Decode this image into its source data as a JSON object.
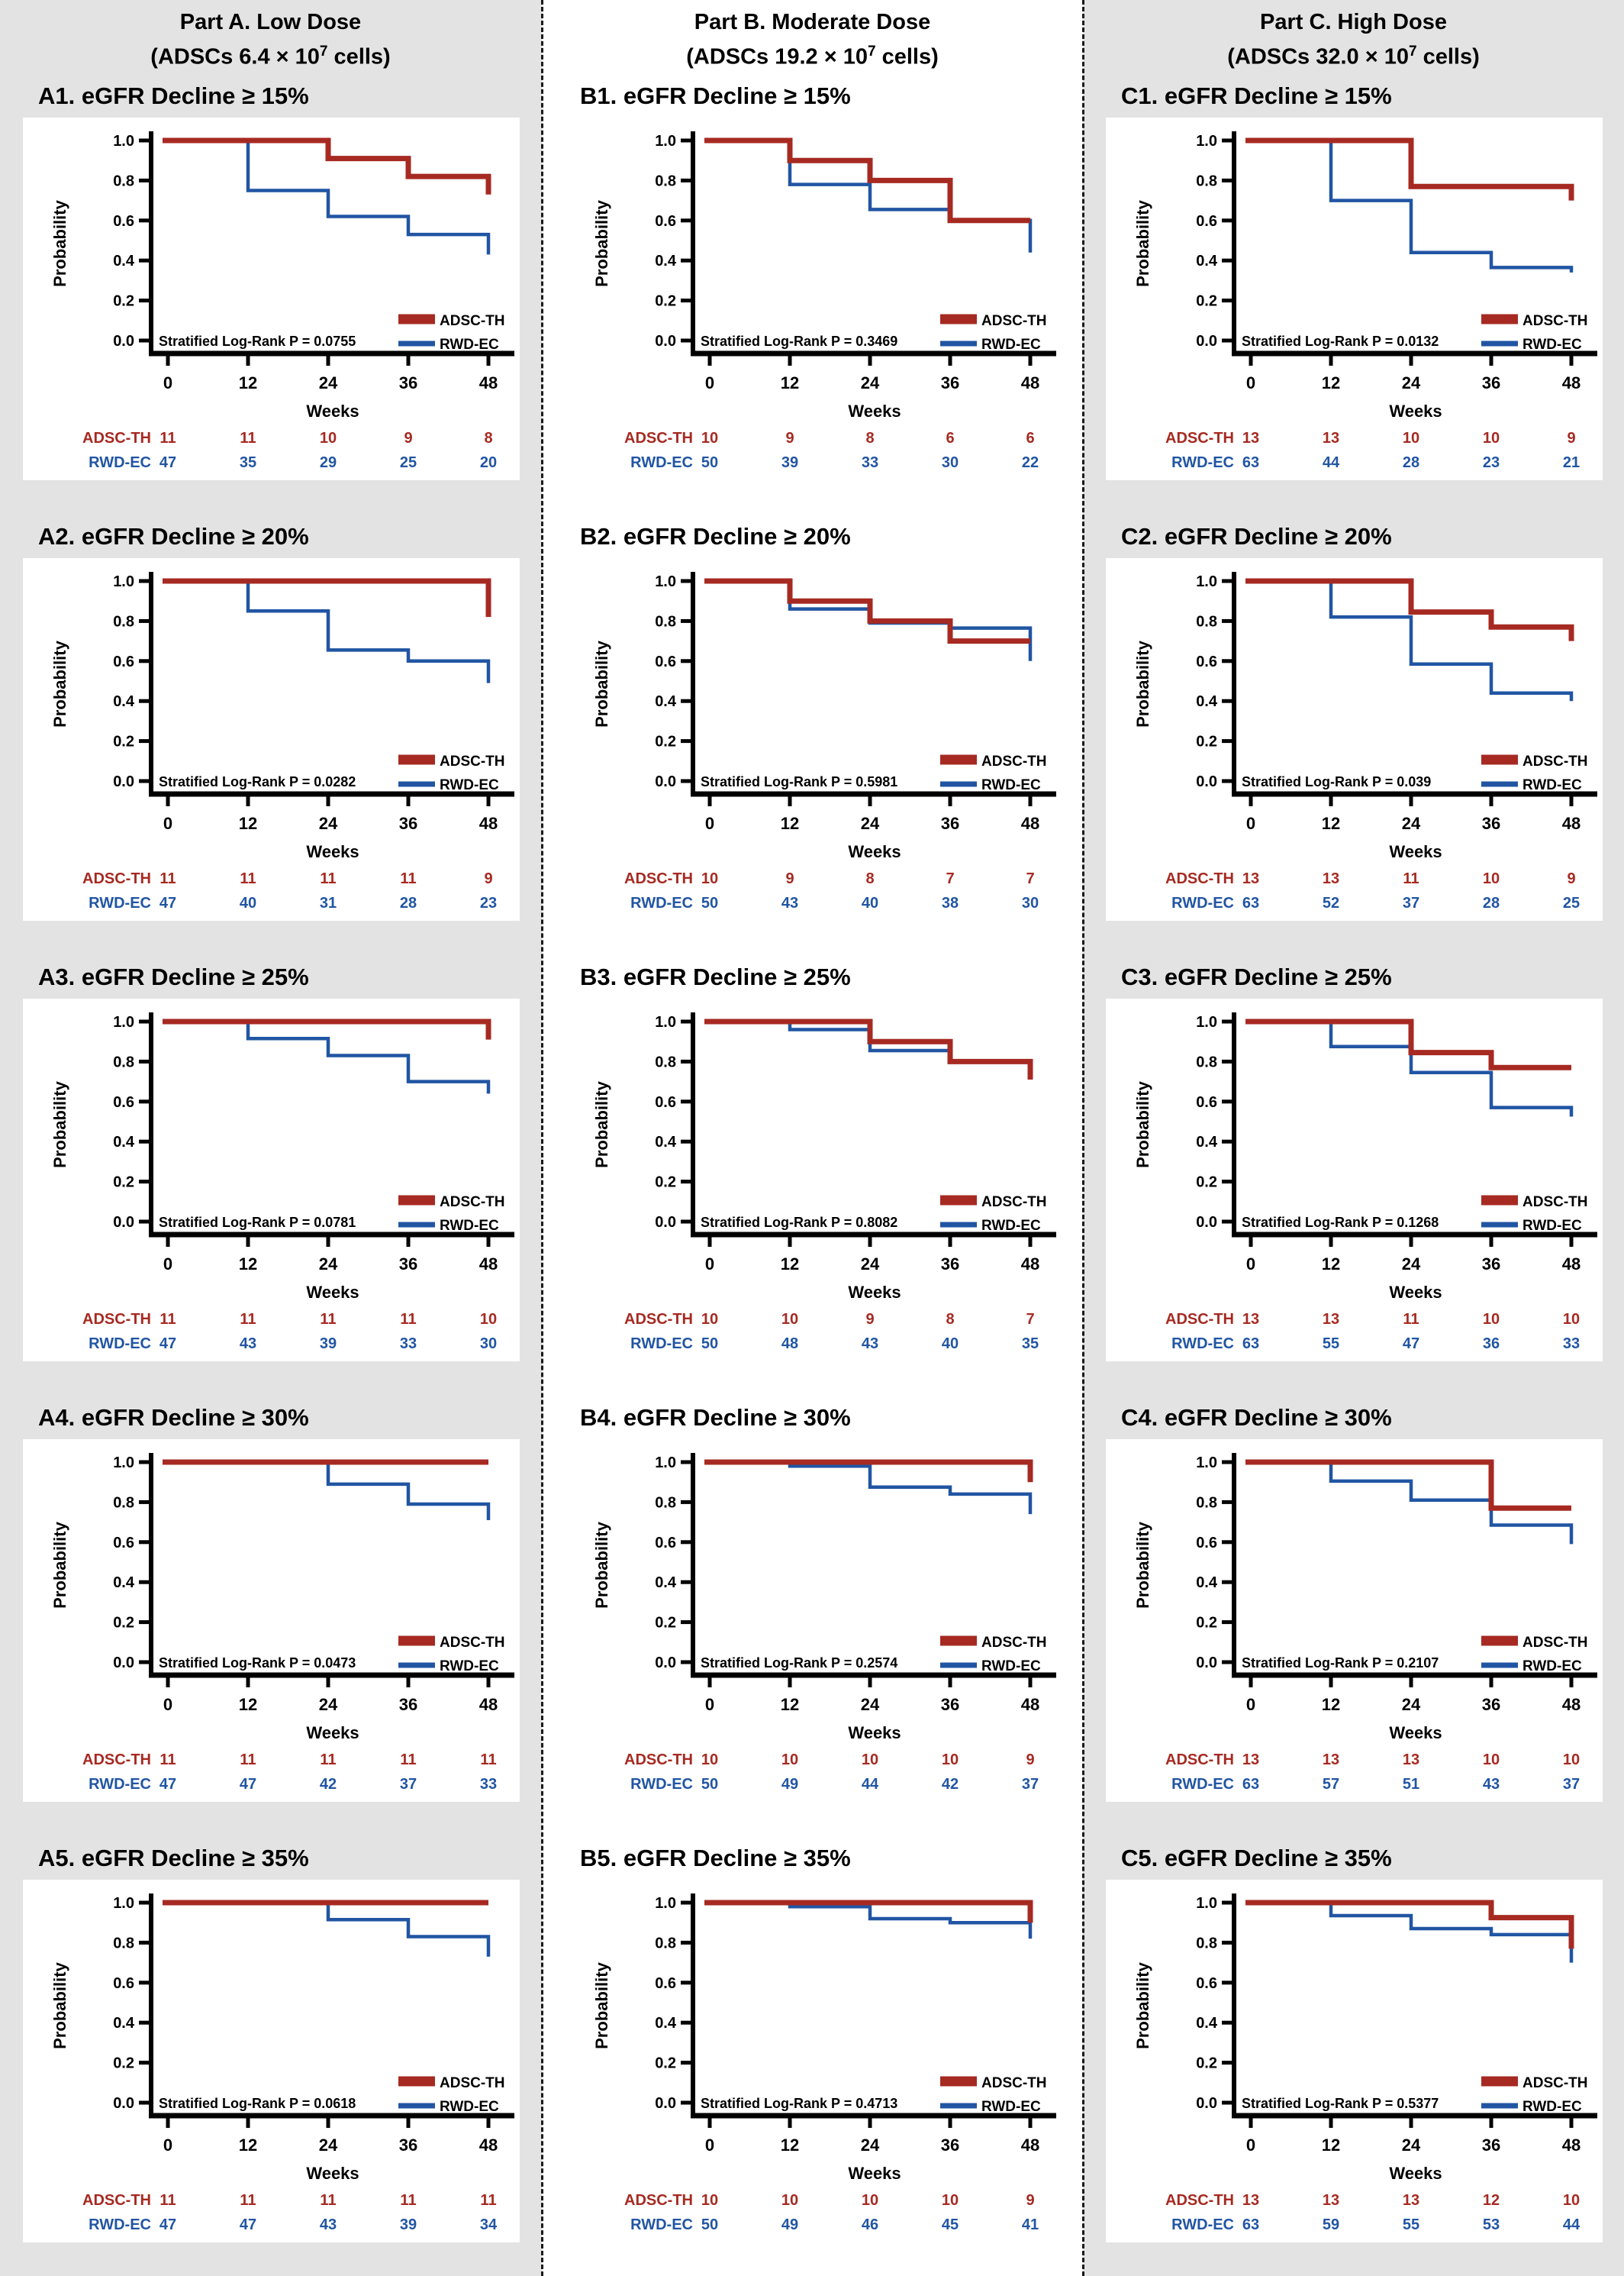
{
  "header": {
    "parts": [
      {
        "line1": "Part A. Low Dose",
        "line2_prefix": "(ADSCs 6.4 × 10",
        "line2_sup": "7",
        "line2_suffix": " cells)"
      },
      {
        "line1": "Part B. Moderate Dose",
        "line2_prefix": "(ADSCs 19.2 × 10",
        "line2_sup": "7",
        "line2_suffix": " cells)"
      },
      {
        "line1": "Part C. High Dose",
        "line2_prefix": "(ADSCs 32.0 × 10",
        "line2_sup": "7",
        "line2_suffix": " cells)"
      }
    ]
  },
  "axes": {
    "ylabel": "Probability",
    "xlabel": "Weeks",
    "yticks": [
      "1.0",
      "0.8",
      "0.6",
      "0.4",
      "0.2",
      "0.0"
    ],
    "xticks": [
      "0",
      "12",
      "24",
      "36",
      "48"
    ],
    "xlim": [
      0,
      48
    ],
    "ylim": [
      0.0,
      1.0
    ]
  },
  "legend": {
    "adsc": "ADSC-TH",
    "rwd": "RWD-EC"
  },
  "colors": {
    "adsc": "#a62a22",
    "rwd": "#2155a3",
    "axis": "#000000",
    "panel_bg": "#ffffff",
    "page_bg": "#e3e3e3"
  },
  "chart_data": [
    {
      "id": "A1",
      "type": "line",
      "title": "A1. eGFR Decline ≥ 15%",
      "p_label": "Stratified Log-Rank P = 0.0755",
      "adsc": {
        "steps": [
          [
            0,
            1.0
          ],
          [
            24,
            0.91
          ],
          [
            36,
            0.82
          ]
        ],
        "end48": 0.73
      },
      "rwd": {
        "steps": [
          [
            0,
            1.0
          ],
          [
            12,
            0.75
          ],
          [
            24,
            0.62
          ],
          [
            36,
            0.53
          ]
        ],
        "end48": 0.43
      },
      "at_risk": {
        "adsc": [
          11,
          11,
          10,
          9,
          8
        ],
        "rwd": [
          47,
          35,
          29,
          25,
          20
        ]
      }
    },
    {
      "id": "B1",
      "type": "line",
      "title": "B1. eGFR Decline ≥ 15%",
      "p_label": "Stratified Log-Rank P = 0.3469",
      "adsc": {
        "steps": [
          [
            0,
            1.0
          ],
          [
            12,
            0.9
          ],
          [
            24,
            0.8
          ],
          [
            36,
            0.6
          ]
        ],
        "end48": null
      },
      "rwd": {
        "steps": [
          [
            0,
            1.0
          ],
          [
            12,
            0.78
          ],
          [
            24,
            0.655
          ],
          [
            36,
            0.6
          ]
        ],
        "end48": 0.44
      },
      "at_risk": {
        "adsc": [
          10,
          9,
          8,
          6,
          6
        ],
        "rwd": [
          50,
          39,
          33,
          30,
          22
        ]
      }
    },
    {
      "id": "C1",
      "type": "line",
      "title": "C1. eGFR Decline ≥ 15%",
      "p_label": "Stratified Log-Rank P = 0.0132",
      "adsc": {
        "steps": [
          [
            0,
            1.0
          ],
          [
            24,
            0.77
          ]
        ],
        "end48": 0.7
      },
      "rwd": {
        "steps": [
          [
            0,
            1.0
          ],
          [
            12,
            0.7
          ],
          [
            24,
            0.44
          ],
          [
            36,
            0.365
          ]
        ],
        "end48": 0.34
      },
      "at_risk": {
        "adsc": [
          13,
          13,
          10,
          10,
          9
        ],
        "rwd": [
          63,
          44,
          28,
          23,
          21
        ]
      }
    },
    {
      "id": "A2",
      "type": "line",
      "title": "A2. eGFR Decline ≥ 20%",
      "p_label": "Stratified Log-Rank P = 0.0282",
      "adsc": {
        "steps": [
          [
            0,
            1.0
          ]
        ],
        "end48": 0.82
      },
      "rwd": {
        "steps": [
          [
            0,
            1.0
          ],
          [
            12,
            0.85
          ],
          [
            24,
            0.655
          ],
          [
            36,
            0.6
          ]
        ],
        "end48": 0.49
      },
      "at_risk": {
        "adsc": [
          11,
          11,
          11,
          11,
          9
        ],
        "rwd": [
          47,
          40,
          31,
          28,
          23
        ]
      }
    },
    {
      "id": "B2",
      "type": "line",
      "title": "B2. eGFR Decline ≥ 20%",
      "p_label": "Stratified Log-Rank P = 0.5981",
      "adsc": {
        "steps": [
          [
            0,
            1.0
          ],
          [
            12,
            0.9
          ],
          [
            24,
            0.8
          ],
          [
            36,
            0.7
          ]
        ],
        "end48": null
      },
      "rwd": {
        "steps": [
          [
            0,
            1.0
          ],
          [
            12,
            0.86
          ],
          [
            24,
            0.79
          ],
          [
            36,
            0.765
          ]
        ],
        "end48": 0.6
      },
      "at_risk": {
        "adsc": [
          10,
          9,
          8,
          7,
          7
        ],
        "rwd": [
          50,
          43,
          40,
          38,
          30
        ]
      }
    },
    {
      "id": "C2",
      "type": "line",
      "title": "C2. eGFR Decline ≥ 20%",
      "p_label": "Stratified Log-Rank P = 0.039",
      "adsc": {
        "steps": [
          [
            0,
            1.0
          ],
          [
            24,
            0.845
          ],
          [
            36,
            0.77
          ]
        ],
        "end48": 0.7
      },
      "rwd": {
        "steps": [
          [
            0,
            1.0
          ],
          [
            12,
            0.82
          ],
          [
            24,
            0.585
          ],
          [
            36,
            0.44
          ]
        ],
        "end48": 0.4
      },
      "at_risk": {
        "adsc": [
          13,
          13,
          11,
          10,
          9
        ],
        "rwd": [
          63,
          52,
          37,
          28,
          25
        ]
      }
    },
    {
      "id": "A3",
      "type": "line",
      "title": "A3. eGFR Decline ≥ 25%",
      "p_label": "Stratified Log-Rank P = 0.0781",
      "adsc": {
        "steps": [
          [
            0,
            1.0
          ]
        ],
        "end48": 0.91
      },
      "rwd": {
        "steps": [
          [
            0,
            1.0
          ],
          [
            12,
            0.915
          ],
          [
            24,
            0.83
          ],
          [
            36,
            0.7
          ]
        ],
        "end48": 0.64
      },
      "at_risk": {
        "adsc": [
          11,
          11,
          11,
          11,
          10
        ],
        "rwd": [
          47,
          43,
          39,
          33,
          30
        ]
      }
    },
    {
      "id": "B3",
      "type": "line",
      "title": "B3. eGFR Decline ≥ 25%",
      "p_label": "Stratified Log-Rank P = 0.8082",
      "adsc": {
        "steps": [
          [
            0,
            1.0
          ],
          [
            24,
            0.9
          ],
          [
            36,
            0.8
          ]
        ],
        "end48": 0.71
      },
      "rwd": {
        "steps": [
          [
            0,
            1.0
          ],
          [
            12,
            0.96
          ],
          [
            24,
            0.855
          ],
          [
            36,
            0.8
          ]
        ],
        "end48": null
      },
      "at_risk": {
        "adsc": [
          10,
          10,
          9,
          8,
          7
        ],
        "rwd": [
          50,
          48,
          43,
          40,
          35
        ]
      }
    },
    {
      "id": "C3",
      "type": "line",
      "title": "C3. eGFR Decline ≥ 25%",
      "p_label": "Stratified Log-Rank P = 0.1268",
      "adsc": {
        "steps": [
          [
            0,
            1.0
          ],
          [
            24,
            0.845
          ],
          [
            36,
            0.77
          ]
        ],
        "end48": null
      },
      "rwd": {
        "steps": [
          [
            0,
            1.0
          ],
          [
            12,
            0.875
          ],
          [
            24,
            0.745
          ],
          [
            36,
            0.57
          ]
        ],
        "end48": 0.525
      },
      "at_risk": {
        "adsc": [
          13,
          13,
          11,
          10,
          10
        ],
        "rwd": [
          63,
          55,
          47,
          36,
          33
        ]
      }
    },
    {
      "id": "A4",
      "type": "line",
      "title": "A4. eGFR Decline ≥ 30%",
      "p_label": "Stratified Log-Rank P = 0.0473",
      "adsc": {
        "steps": [
          [
            0,
            1.0
          ]
        ],
        "end48": null
      },
      "rwd": {
        "steps": [
          [
            0,
            1.0
          ],
          [
            24,
            0.89
          ],
          [
            36,
            0.79
          ]
        ],
        "end48": 0.71
      },
      "at_risk": {
        "adsc": [
          11,
          11,
          11,
          11,
          11
        ],
        "rwd": [
          47,
          47,
          42,
          37,
          33
        ]
      }
    },
    {
      "id": "B4",
      "type": "line",
      "title": "B4. eGFR Decline ≥ 30%",
      "p_label": "Stratified Log-Rank P = 0.2574",
      "adsc": {
        "steps": [
          [
            0,
            1.0
          ]
        ],
        "end48": 0.9
      },
      "rwd": {
        "steps": [
          [
            0,
            1.0
          ],
          [
            12,
            0.98
          ],
          [
            24,
            0.875
          ],
          [
            36,
            0.84
          ]
        ],
        "end48": 0.74
      },
      "at_risk": {
        "adsc": [
          10,
          10,
          10,
          10,
          9
        ],
        "rwd": [
          50,
          49,
          44,
          42,
          37
        ]
      }
    },
    {
      "id": "C4",
      "type": "line",
      "title": "C4. eGFR Decline ≥ 30%",
      "p_label": "Stratified Log-Rank P = 0.2107",
      "adsc": {
        "steps": [
          [
            0,
            1.0
          ],
          [
            36,
            0.77
          ]
        ],
        "end48": null
      },
      "rwd": {
        "steps": [
          [
            0,
            1.0
          ],
          [
            12,
            0.905
          ],
          [
            24,
            0.81
          ],
          [
            36,
            0.685
          ]
        ],
        "end48": 0.59
      },
      "at_risk": {
        "adsc": [
          13,
          13,
          13,
          10,
          10
        ],
        "rwd": [
          63,
          57,
          51,
          43,
          37
        ]
      }
    },
    {
      "id": "A5",
      "type": "line",
      "title": "A5. eGFR Decline ≥ 35%",
      "p_label": "Stratified Log-Rank P = 0.0618",
      "adsc": {
        "steps": [
          [
            0,
            1.0
          ]
        ],
        "end48": null
      },
      "rwd": {
        "steps": [
          [
            0,
            1.0
          ],
          [
            24,
            0.915
          ],
          [
            36,
            0.83
          ]
        ],
        "end48": 0.73
      },
      "at_risk": {
        "adsc": [
          11,
          11,
          11,
          11,
          11
        ],
        "rwd": [
          47,
          47,
          43,
          39,
          34
        ]
      }
    },
    {
      "id": "B5",
      "type": "line",
      "title": "B5. eGFR Decline ≥ 35%",
      "p_label": "Stratified Log-Rank P = 0.4713",
      "adsc": {
        "steps": [
          [
            0,
            1.0
          ]
        ],
        "end48": 0.9
      },
      "rwd": {
        "steps": [
          [
            0,
            1.0
          ],
          [
            12,
            0.98
          ],
          [
            24,
            0.92
          ],
          [
            36,
            0.9
          ]
        ],
        "end48": 0.82
      },
      "at_risk": {
        "adsc": [
          10,
          10,
          10,
          10,
          9
        ],
        "rwd": [
          50,
          49,
          46,
          45,
          41
        ]
      }
    },
    {
      "id": "C5",
      "type": "line",
      "title": "C5. eGFR Decline ≥ 35%",
      "p_label": "Stratified Log-Rank P = 0.5377",
      "adsc": {
        "steps": [
          [
            0,
            1.0
          ],
          [
            36,
            0.925
          ]
        ],
        "end48": 0.77
      },
      "rwd": {
        "steps": [
          [
            0,
            1.0
          ],
          [
            12,
            0.935
          ],
          [
            24,
            0.87
          ],
          [
            36,
            0.84
          ]
        ],
        "end48": 0.7
      },
      "at_risk": {
        "adsc": [
          13,
          13,
          13,
          12,
          10
        ],
        "rwd": [
          63,
          59,
          55,
          53,
          44
        ]
      }
    }
  ]
}
